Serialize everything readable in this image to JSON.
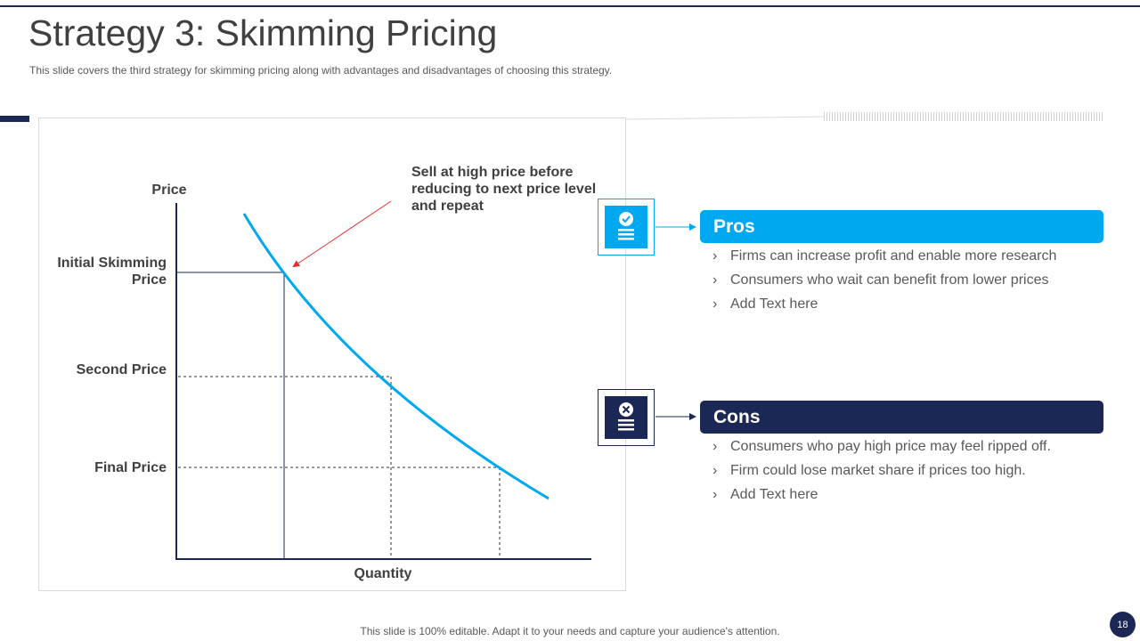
{
  "slide": {
    "title": "Strategy 3: Skimming Pricing",
    "subtitle": "This slide covers the third strategy for  skimming pricing along with advantages and disadvantages of choosing this strategy.",
    "footer": "This slide is 100% editable. Adapt it to your needs and capture your audience's attention.",
    "page_number": "18"
  },
  "diagram": {
    "y_axis_label": "Price",
    "x_axis_label": "Quantity",
    "price_levels": {
      "initial": "Initial Skimming Price",
      "second": "Second Price",
      "final": "Final Price"
    },
    "callout": "Sell at high price before reducing to next price level and repeat",
    "colors": {
      "curve": "#00a9ef",
      "axis": "#1b2754",
      "callout_arrow": "#e03030"
    }
  },
  "pros": {
    "heading": "Pros",
    "icon": "document-check-icon",
    "items": [
      "Firms can increase profit and enable more research",
      "Consumers who wait can benefit from lower prices",
      "Add Text here"
    ]
  },
  "cons": {
    "heading": "Cons",
    "icon": "document-x-icon",
    "items": [
      "Consumers who pay high price may feel ripped off.",
      "Firm could lose market share if prices too high.",
      "Add Text here"
    ]
  },
  "theme": {
    "accent": "#00a9ef",
    "navy": "#1b2754"
  }
}
